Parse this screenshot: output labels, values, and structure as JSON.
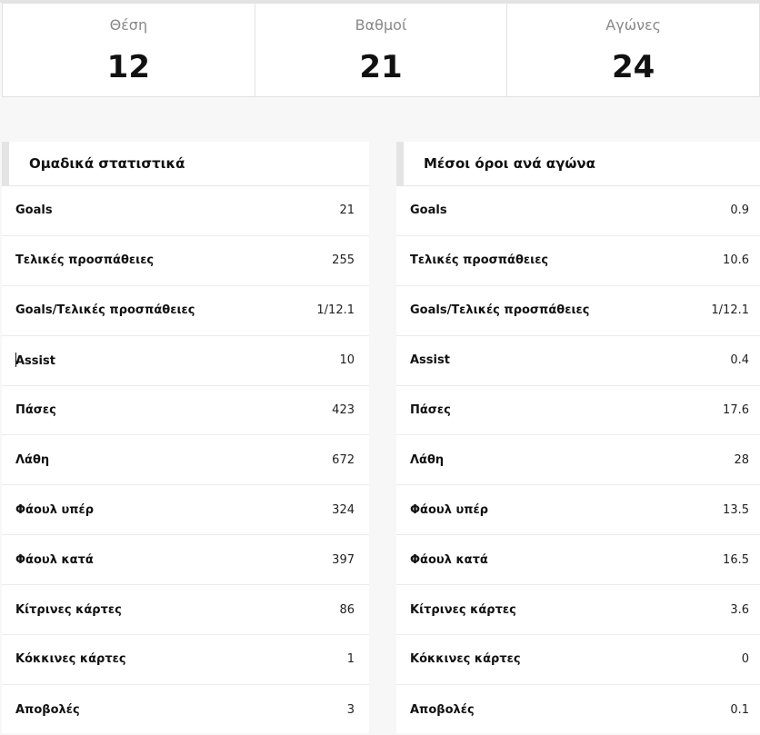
{
  "summary": {
    "position": {
      "label": "Θέση",
      "value": "12"
    },
    "points": {
      "label": "Βαθμοί",
      "value": "21"
    },
    "matches": {
      "label": "Αγώνες",
      "value": "24"
    }
  },
  "team_stats": {
    "title": "Ομαδικά στατιστικά",
    "rows": [
      {
        "label": "Goals",
        "value": "21"
      },
      {
        "label": "Τελικές προσπάθειες",
        "value": "255"
      },
      {
        "label": "Goals/Τελικές προσπάθειες",
        "value": "1/12.1"
      },
      {
        "label": "Assist",
        "value": "10"
      },
      {
        "label": "Πάσες",
        "value": "423"
      },
      {
        "label": "Λάθη",
        "value": "672"
      },
      {
        "label": "Φάουλ υπέρ",
        "value": "324"
      },
      {
        "label": "Φάουλ κατά",
        "value": "397"
      },
      {
        "label": "Κίτρινες κάρτες",
        "value": "86"
      },
      {
        "label": "Κόκκινες κάρτες",
        "value": "1"
      },
      {
        "label": "Αποβολές",
        "value": "3"
      }
    ]
  },
  "averages": {
    "title": "Μέσοι όροι ανά αγώνα",
    "rows": [
      {
        "label": "Goals",
        "value": "0.9"
      },
      {
        "label": "Τελικές προσπάθειες",
        "value": "10.6"
      },
      {
        "label": "Goals/Τελικές προσπάθειες",
        "value": "1/12.1"
      },
      {
        "label": "Assist",
        "value": "0.4"
      },
      {
        "label": "Πάσες",
        "value": "17.6"
      },
      {
        "label": "Λάθη",
        "value": "28"
      },
      {
        "label": "Φάουλ υπέρ",
        "value": "13.5"
      },
      {
        "label": "Φάουλ κατά",
        "value": "16.5"
      },
      {
        "label": "Κίτρινες κάρτες",
        "value": "3.6"
      },
      {
        "label": "Κόκκινες κάρτες",
        "value": "0"
      },
      {
        "label": "Αποβολές",
        "value": "0.1"
      }
    ]
  }
}
